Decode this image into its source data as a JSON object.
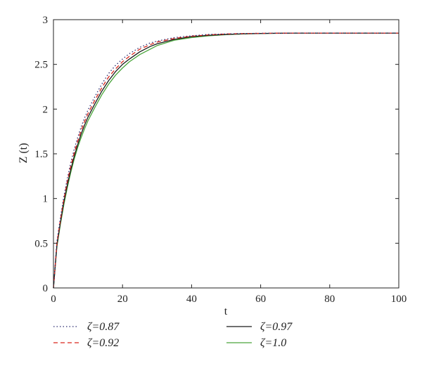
{
  "chart_data": {
    "type": "line",
    "xlabel": "t",
    "ylabel": "Z (t)",
    "xlim": [
      0,
      100
    ],
    "ylim": [
      0,
      3
    ],
    "xticks": [
      "0",
      "20",
      "40",
      "60",
      "80",
      "100"
    ],
    "yticks": [
      "0",
      "0.5",
      "1",
      "1.5",
      "2",
      "2.5",
      "3"
    ],
    "grid": false,
    "legend_position": "bottom",
    "series": [
      {
        "name": "ζ=0.87",
        "style": "dotted",
        "color": "#2b2b6f",
        "x": [
          0,
          1,
          2,
          3,
          4,
          5,
          6,
          7,
          8,
          9,
          10,
          12,
          14,
          16,
          18,
          20,
          22,
          25,
          28,
          30,
          35,
          40,
          45,
          50,
          55,
          60,
          70,
          80,
          90,
          100
        ],
        "y": [
          0,
          0.52,
          0.78,
          1.02,
          1.22,
          1.4,
          1.55,
          1.68,
          1.8,
          1.9,
          1.99,
          2.14,
          2.28,
          2.4,
          2.49,
          2.56,
          2.62,
          2.69,
          2.74,
          2.76,
          2.8,
          2.82,
          2.835,
          2.84,
          2.845,
          2.847,
          2.85,
          2.85,
          2.85,
          2.85
        ]
      },
      {
        "name": "ζ=0.92",
        "style": "dashed",
        "color": "#d9261c",
        "x": [
          0,
          1,
          2,
          3,
          4,
          5,
          6,
          7,
          8,
          9,
          10,
          12,
          14,
          16,
          18,
          20,
          22,
          25,
          28,
          30,
          35,
          40,
          45,
          50,
          55,
          60,
          70,
          80,
          90,
          100
        ],
        "y": [
          0,
          0.5,
          0.76,
          0.99,
          1.19,
          1.36,
          1.51,
          1.64,
          1.76,
          1.86,
          1.95,
          2.1,
          2.24,
          2.36,
          2.45,
          2.53,
          2.59,
          2.67,
          2.72,
          2.75,
          2.79,
          2.815,
          2.83,
          2.84,
          2.845,
          2.847,
          2.85,
          2.85,
          2.85,
          2.85
        ]
      },
      {
        "name": "ζ=0.97",
        "style": "solid",
        "color": "#1a1a1a",
        "x": [
          0,
          1,
          2,
          3,
          4,
          5,
          6,
          7,
          8,
          9,
          10,
          12,
          14,
          16,
          18,
          20,
          22,
          25,
          28,
          30,
          35,
          40,
          45,
          50,
          55,
          60,
          70,
          80,
          90,
          100
        ],
        "y": [
          0,
          0.48,
          0.73,
          0.96,
          1.15,
          1.32,
          1.47,
          1.6,
          1.72,
          1.82,
          1.91,
          2.06,
          2.2,
          2.32,
          2.42,
          2.5,
          2.56,
          2.64,
          2.7,
          2.73,
          2.78,
          2.81,
          2.825,
          2.835,
          2.842,
          2.846,
          2.85,
          2.85,
          2.85,
          2.85
        ]
      },
      {
        "name": "ζ=1.0",
        "style": "solid",
        "color": "#4aa53b",
        "x": [
          0,
          1,
          2,
          3,
          4,
          5,
          6,
          7,
          8,
          9,
          10,
          12,
          14,
          16,
          18,
          20,
          22,
          25,
          28,
          30,
          35,
          40,
          45,
          50,
          55,
          60,
          70,
          80,
          90,
          100
        ],
        "y": [
          0,
          0.46,
          0.71,
          0.93,
          1.12,
          1.29,
          1.44,
          1.57,
          1.68,
          1.78,
          1.87,
          2.02,
          2.16,
          2.28,
          2.38,
          2.46,
          2.53,
          2.61,
          2.67,
          2.71,
          2.77,
          2.8,
          2.82,
          2.832,
          2.84,
          2.845,
          2.85,
          2.85,
          2.85,
          2.85
        ]
      }
    ]
  }
}
